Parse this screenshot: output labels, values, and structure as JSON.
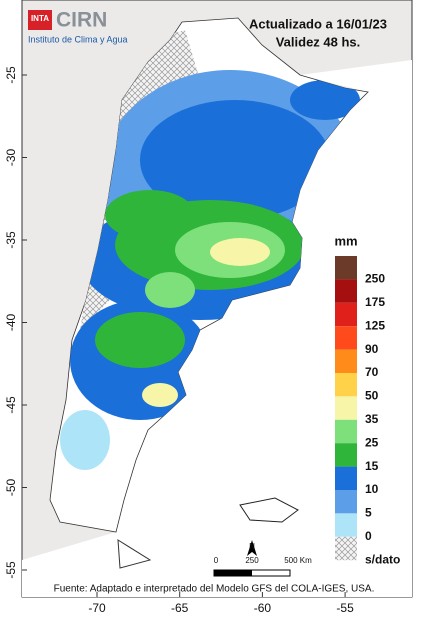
{
  "header": {
    "logo_badge": "INTA",
    "logo_name": "CIRN",
    "institute": "Instituto de Clima y Agua",
    "updated": "Actualizado a 16/01/23",
    "validity": "Validez 48 hs."
  },
  "latitude_labels": [
    "-25",
    "-30",
    "-35",
    "-40",
    "-45",
    "-50",
    "-55"
  ],
  "longitude_labels": [
    "-70",
    "-65",
    "-60",
    "-55"
  ],
  "legend": {
    "unit": "mm",
    "items": [
      {
        "label": "250",
        "color": "#6b3a28"
      },
      {
        "label": "175",
        "color": "#a50f0f"
      },
      {
        "label": "125",
        "color": "#e0201b"
      },
      {
        "label": "90",
        "color": "#ff4a1c"
      },
      {
        "label": "70",
        "color": "#ff8c1a"
      },
      {
        "label": "50",
        "color": "#ffd24a"
      },
      {
        "label": "35",
        "color": "#f6f5a8"
      },
      {
        "label": "25",
        "color": "#7ee07a"
      },
      {
        "label": "15",
        "color": "#2fb53a"
      },
      {
        "label": "10",
        "color": "#1a6fd8"
      },
      {
        "label": "5",
        "color": "#5d9ee8"
      },
      {
        "label": "0",
        "color": "#aee4f7"
      },
      {
        "label": "s/dato",
        "color": "pattern"
      }
    ],
    "bottom_color": "#ffffff"
  },
  "scale_bar": {
    "labels": [
      "0",
      "250",
      "500 Km"
    ],
    "north": "N"
  },
  "footer": "Fuente: Adaptado e interpretado del Modelo GFS del COLA-IGES, USA."
}
